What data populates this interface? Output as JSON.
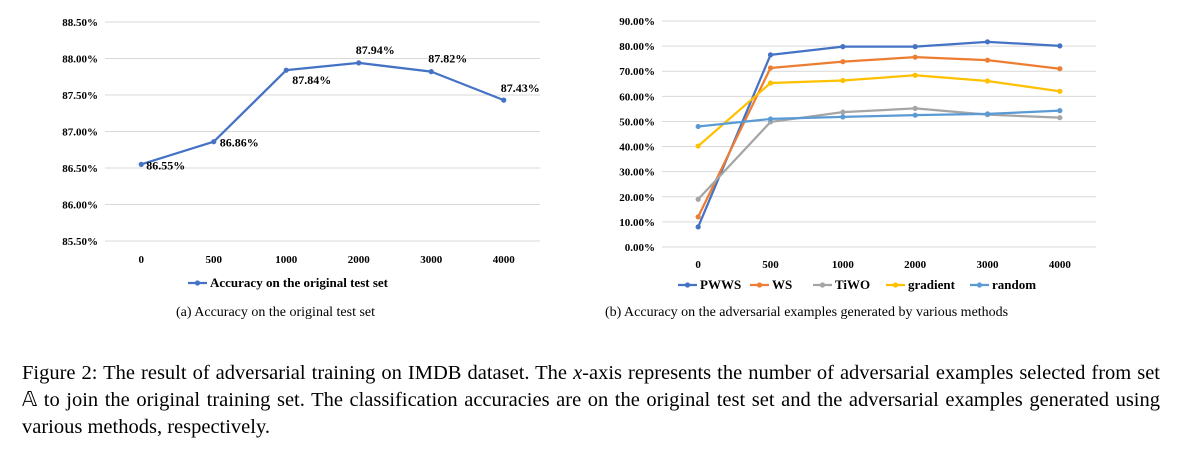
{
  "chart_data": [
    {
      "type": "line",
      "categories": [
        "0",
        "500",
        "1000",
        "2000",
        "3000",
        "4000"
      ],
      "series": [
        {
          "name": "Accuracy on the original test set",
          "values": [
            86.55,
            86.86,
            87.84,
            87.94,
            87.82,
            87.43
          ]
        }
      ],
      "data_labels": [
        "86.55%",
        "86.86%",
        "87.84%",
        "87.94%",
        "87.82%",
        "87.43%"
      ],
      "ylim": [
        85.5,
        88.5
      ],
      "yticks": [
        "85.50%",
        "86.00%",
        "86.50%",
        "87.00%",
        "87.50%",
        "88.00%",
        "88.50%"
      ],
      "grid": true,
      "legend_position": "bottom",
      "colors": [
        "#4472C4"
      ]
    },
    {
      "type": "line",
      "categories": [
        "0",
        "500",
        "1000",
        "2000",
        "3000",
        "4000"
      ],
      "series": [
        {
          "name": "PWWS",
          "values": [
            8,
            76.5,
            79.8,
            79.8,
            81.7,
            80.1
          ],
          "color": "#4472C4"
        },
        {
          "name": "WS",
          "values": [
            12,
            71.3,
            73.8,
            75.6,
            74.4,
            71.0
          ],
          "color": "#ED7D31"
        },
        {
          "name": "TiWO",
          "values": [
            19,
            49.8,
            53.7,
            55.2,
            52.7,
            51.5
          ],
          "color": "#A5A5A5"
        },
        {
          "name": "gradient",
          "values": [
            40.2,
            65.3,
            66.3,
            68.4,
            66.1,
            62.0
          ],
          "color": "#FFC000"
        },
        {
          "name": "random",
          "values": [
            48.0,
            51.0,
            51.8,
            52.5,
            53.0,
            54.3
          ],
          "color": "#5B9BD5"
        }
      ],
      "ylim": [
        0,
        90
      ],
      "yticks": [
        "0.00%",
        "10.00%",
        "20.00%",
        "30.00%",
        "40.00%",
        "50.00%",
        "60.00%",
        "70.00%",
        "80.00%",
        "90.00%"
      ],
      "grid": true,
      "legend_position": "bottom"
    }
  ],
  "subcaptions": {
    "a": "(a) Accuracy on the original test set",
    "b": "(b) Accuracy on the adversarial examples generated by various methods"
  },
  "caption": {
    "prefix": "Figure 2: The result of adversarial training on IMDB dataset. The ",
    "axis_var": "x",
    "middle": "-axis represents the number of adversarial examples selected from set ",
    "set_symbol": "𝔸",
    "suffix": " to join the original training set. The classification accuracies are on the original test set and the adversarial examples generated using various methods, respectively."
  }
}
